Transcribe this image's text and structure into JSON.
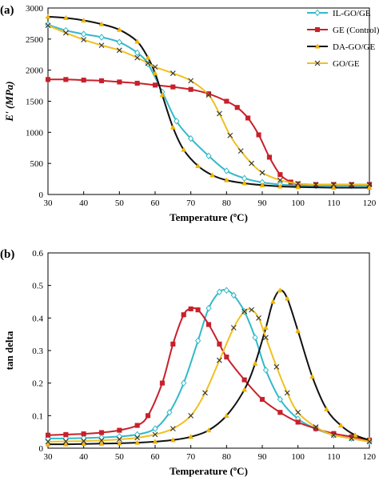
{
  "chart_data": [
    {
      "panel": "(a)",
      "type": "line",
      "xlabel": "Temperature (ºC)",
      "ylabel": "E' (MPa)",
      "xlim": [
        30,
        120
      ],
      "ylim": [
        0,
        3000
      ],
      "xticks": [
        30,
        40,
        50,
        60,
        70,
        80,
        90,
        100,
        110,
        120
      ],
      "yticks": [
        0,
        500,
        1000,
        1500,
        2000,
        2500,
        3000
      ],
      "grid": false,
      "legend_position": "top-right",
      "series": [
        {
          "name": "IL-GO/GE",
          "color": "#33b9c9",
          "marker": "diamond",
          "x": [
            30,
            35,
            40,
            45,
            50,
            55,
            58,
            62,
            66,
            70,
            75,
            80,
            85,
            90,
            95,
            100,
            105,
            110,
            115,
            120
          ],
          "y": [
            2730,
            2640,
            2580,
            2530,
            2450,
            2280,
            2100,
            1650,
            1180,
            900,
            620,
            380,
            260,
            195,
            160,
            145,
            140,
            140,
            140,
            140
          ]
        },
        {
          "name": "GE (Control)",
          "color": "#c8202a",
          "marker": "square",
          "x": [
            30,
            35,
            40,
            45,
            50,
            55,
            60,
            65,
            70,
            75,
            80,
            83,
            86,
            89,
            92,
            95,
            98,
            100,
            105,
            110,
            115,
            120
          ],
          "y": [
            1850,
            1850,
            1840,
            1830,
            1810,
            1790,
            1760,
            1730,
            1690,
            1620,
            1500,
            1400,
            1230,
            960,
            600,
            320,
            200,
            170,
            160,
            160,
            160,
            160
          ]
        },
        {
          "name": "DA-GO/GE",
          "color": "#f0b400",
          "line_color": "#111111",
          "marker": "triangle",
          "x": [
            30,
            35,
            40,
            45,
            50,
            55,
            58,
            60,
            62,
            65,
            68,
            72,
            76,
            80,
            85,
            90,
            95,
            100,
            110,
            120
          ],
          "y": [
            2860,
            2840,
            2800,
            2740,
            2650,
            2460,
            2200,
            1950,
            1600,
            1080,
            720,
            460,
            310,
            230,
            180,
            150,
            130,
            120,
            110,
            110
          ]
        },
        {
          "name": "GO/GE",
          "color": "#f0c020",
          "line_color": "#f0c020",
          "marker": "x",
          "x": [
            30,
            35,
            40,
            45,
            50,
            55,
            58,
            60,
            65,
            70,
            75,
            78,
            81,
            84,
            87,
            90,
            95,
            100,
            105,
            110,
            115,
            120
          ],
          "y": [
            2720,
            2600,
            2490,
            2400,
            2320,
            2200,
            2110,
            2050,
            1950,
            1830,
            1600,
            1300,
            950,
            700,
            500,
            350,
            230,
            175,
            160,
            160,
            160,
            160
          ]
        }
      ]
    },
    {
      "panel": "(b)",
      "type": "line",
      "xlabel": "Temperature (ºC)",
      "ylabel": "tan delta",
      "xlim": [
        30,
        120
      ],
      "ylim": [
        0,
        0.6
      ],
      "xticks": [
        30,
        40,
        50,
        60,
        70,
        80,
        90,
        100,
        110,
        120
      ],
      "yticks": [
        0,
        0.1,
        0.2,
        0.3,
        0.4,
        0.5,
        0.6
      ],
      "xtick_labels": [
        "30",
        "40",
        "50",
        "60",
        "70",
        "80",
        "90",
        "100",
        "110",
        "120"
      ],
      "ytick_labels": [
        "0",
        "0.1",
        "0.2",
        "0.3",
        "0.4",
        "0.5",
        "0.6"
      ],
      "grid": false,
      "series": [
        {
          "name": "IL-GO/GE",
          "color": "#33b9c9",
          "marker": "diamond",
          "x": [
            30,
            35,
            40,
            45,
            50,
            55,
            60,
            64,
            68,
            72,
            75,
            78,
            80,
            82,
            85,
            88,
            91,
            95,
            100,
            105,
            110,
            115,
            120
          ],
          "y": [
            0.03,
            0.03,
            0.031,
            0.033,
            0.036,
            0.042,
            0.06,
            0.11,
            0.2,
            0.33,
            0.43,
            0.48,
            0.485,
            0.47,
            0.42,
            0.34,
            0.24,
            0.15,
            0.09,
            0.06,
            0.04,
            0.03,
            0.02
          ]
        },
        {
          "name": "GE (Control)",
          "color": "#c8202a",
          "marker": "square",
          "x": [
            30,
            35,
            40,
            45,
            50,
            55,
            58,
            62,
            65,
            68,
            70,
            72,
            75,
            78,
            80,
            85,
            90,
            95,
            100,
            105,
            110,
            115,
            120
          ],
          "y": [
            0.04,
            0.042,
            0.044,
            0.048,
            0.055,
            0.07,
            0.1,
            0.2,
            0.32,
            0.41,
            0.428,
            0.425,
            0.38,
            0.32,
            0.28,
            0.21,
            0.15,
            0.11,
            0.08,
            0.06,
            0.045,
            0.035,
            0.025
          ]
        },
        {
          "name": "DA-GO/GE",
          "color": "#f0b400",
          "line_color": "#111111",
          "marker": "triangle",
          "x": [
            30,
            35,
            40,
            45,
            50,
            55,
            60,
            65,
            70,
            75,
            80,
            85,
            88,
            91,
            93,
            95,
            97,
            100,
            104,
            108,
            112,
            116,
            120
          ],
          "y": [
            0.012,
            0.012,
            0.013,
            0.014,
            0.015,
            0.017,
            0.02,
            0.025,
            0.035,
            0.055,
            0.1,
            0.18,
            0.26,
            0.37,
            0.45,
            0.485,
            0.46,
            0.36,
            0.22,
            0.12,
            0.07,
            0.04,
            0.025
          ]
        },
        {
          "name": "GO/GE",
          "color": "#f0c020",
          "line_color": "#f0c020",
          "marker": "x",
          "x": [
            30,
            35,
            40,
            45,
            50,
            55,
            60,
            65,
            70,
            74,
            78,
            82,
            85,
            87,
            89,
            91,
            94,
            97,
            100,
            105,
            110,
            115,
            120
          ],
          "y": [
            0.02,
            0.021,
            0.022,
            0.024,
            0.027,
            0.032,
            0.042,
            0.06,
            0.1,
            0.17,
            0.27,
            0.37,
            0.42,
            0.425,
            0.4,
            0.34,
            0.25,
            0.17,
            0.11,
            0.065,
            0.04,
            0.03,
            0.02
          ]
        }
      ]
    }
  ]
}
